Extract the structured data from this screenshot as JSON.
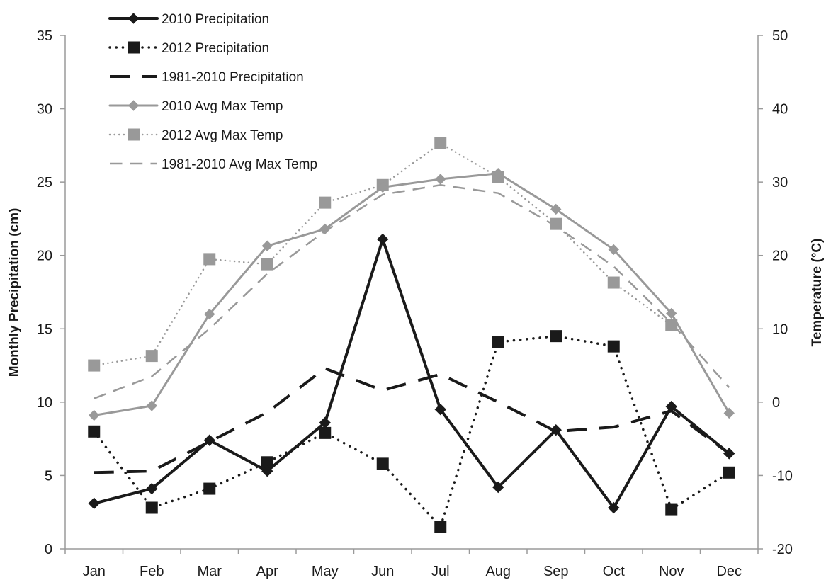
{
  "chart_data": {
    "type": "line",
    "title": "",
    "categories": [
      "Jan",
      "Feb",
      "Mar",
      "Apr",
      "May",
      "Jun",
      "Jul",
      "Aug",
      "Sep",
      "Oct",
      "Nov",
      "Dec"
    ],
    "ylabel": "Monthly Precipitation (cm)",
    "ylabel_right": "Temperature (°C)",
    "ylim": [
      0,
      35
    ],
    "yticks": [
      0,
      5,
      10,
      15,
      20,
      25,
      30,
      35
    ],
    "ylim_right": [
      -20,
      50
    ],
    "yticks_right": [
      -20,
      -10,
      0,
      10,
      20,
      30,
      40,
      50
    ],
    "grid": false,
    "legend_position": "top-left",
    "series": [
      {
        "name": "2010 Precipitation",
        "axis": "left",
        "color": "#1a1a1a",
        "dash": "solid",
        "marker": "diamond",
        "width": 4,
        "values": [
          3.1,
          4.1,
          7.4,
          5.3,
          8.6,
          21.1,
          9.5,
          4.2,
          8.1,
          2.8,
          9.7,
          6.5
        ]
      },
      {
        "name": "2012 Precipitation",
        "axis": "left",
        "color": "#1a1a1a",
        "dash": "dotted",
        "marker": "square",
        "width": 3.5,
        "values": [
          8.0,
          2.8,
          4.1,
          5.9,
          7.9,
          5.8,
          1.5,
          14.1,
          14.5,
          13.8,
          2.7,
          5.2
        ]
      },
      {
        "name": "1981-2010 Precipitation",
        "axis": "left",
        "color": "#1a1a1a",
        "dash": "dashed",
        "marker": "none",
        "width": 4,
        "values": [
          5.2,
          5.3,
          7.3,
          9.3,
          12.3,
          10.8,
          11.9,
          10.0,
          8.0,
          8.3,
          9.4,
          6.5
        ]
      },
      {
        "name": "2010 Avg Max Temp",
        "axis": "right",
        "color": "#999999",
        "dash": "solid",
        "marker": "diamond",
        "width": 3,
        "values": [
          -1.8,
          -0.5,
          12.0,
          21.3,
          23.6,
          29.3,
          30.4,
          31.2,
          26.3,
          20.8,
          12.1,
          -1.5
        ]
      },
      {
        "name": "2012 Avg Max Temp",
        "axis": "right",
        "color": "#999999",
        "dash": "dotted",
        "marker": "square",
        "width": 2.5,
        "values": [
          5.0,
          6.3,
          19.5,
          18.8,
          27.2,
          29.6,
          35.3,
          30.7,
          24.3,
          16.3,
          10.5,
          null
        ]
      },
      {
        "name": "1981-2010 Avg Max Temp",
        "axis": "right",
        "color": "#999999",
        "dash": "dashed",
        "marker": "none",
        "width": 2.5,
        "values": [
          0.5,
          3.5,
          10.0,
          17.5,
          23.3,
          28.3,
          29.6,
          28.5,
          24.0,
          18.5,
          10.8,
          2.0
        ]
      }
    ]
  }
}
